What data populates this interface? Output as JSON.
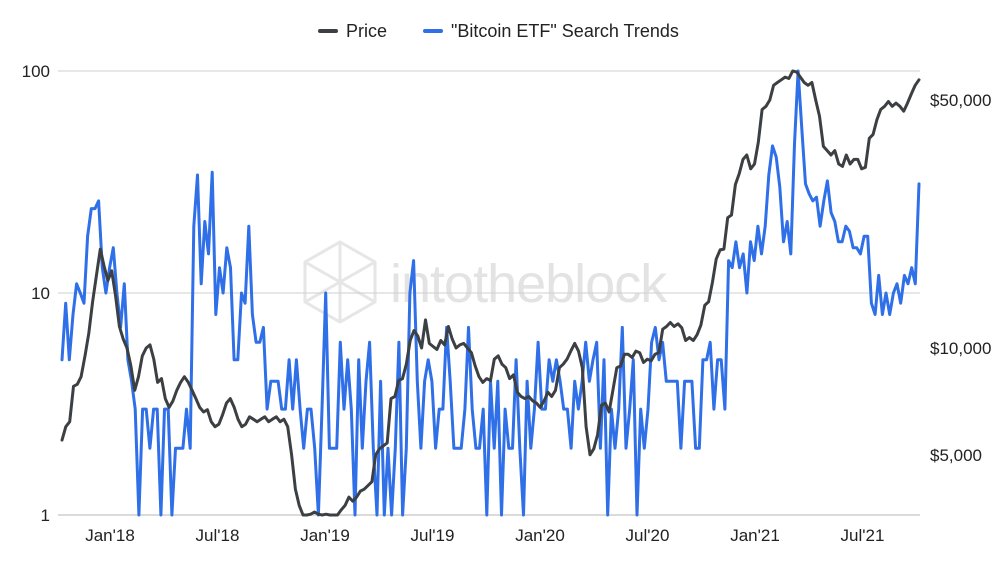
{
  "chart_data": {
    "type": "line",
    "legend_position": "top",
    "watermark": "intotheblock",
    "colors": {
      "price": "#3c4043",
      "search": "#2f6fe8",
      "grid": "#cfcfcf"
    },
    "x_ticks": [
      "Jan'18",
      "Jul'18",
      "Jan'19",
      "Jul'19",
      "Jan'20",
      "Jul'20",
      "Jan'21",
      "Jul'21"
    ],
    "left_axis": {
      "scale": "log",
      "range": [
        1,
        100
      ],
      "ticks": [
        "1",
        "10",
        "100"
      ]
    },
    "right_axis": {
      "scale": "log",
      "ticks": [
        "$5,000",
        "$10,000",
        "$50,000"
      ]
    },
    "series": [
      {
        "name": "Price",
        "axis": "right",
        "values": [
          5500,
          6000,
          6200,
          7800,
          7900,
          8300,
          9500,
          11000,
          13500,
          16000,
          19000,
          17000,
          15500,
          16500,
          14000,
          11500,
          10600,
          10000,
          8900,
          7600,
          8300,
          9500,
          10000,
          10200,
          9300,
          8000,
          8200,
          7200,
          6800,
          7100,
          7600,
          8000,
          8300,
          8000,
          7600,
          7200,
          6800,
          6600,
          6700,
          6200,
          6000,
          6100,
          6500,
          7000,
          7200,
          6800,
          6300,
          6000,
          6100,
          6400,
          6300,
          6200,
          6300,
          6400,
          6200,
          6300,
          6400,
          6200,
          6300,
          6000,
          5000,
          4000,
          3600,
          3300,
          3200,
          3400,
          3450,
          3400,
          3300,
          3400,
          3300,
          3200,
          3300,
          3500,
          3600,
          3800,
          3700,
          3800,
          3950,
          4000,
          4100,
          4200,
          5000,
          5200,
          5300,
          5400,
          7200,
          7300,
          8100,
          8200,
          9000,
          10500,
          11200,
          10800,
          10000,
          12000,
          10300,
          10100,
          9900,
          10500,
          10200,
          11500,
          10600,
          10000,
          10200,
          10300,
          10000,
          9700,
          8900,
          8300,
          8000,
          8200,
          8100,
          9300,
          9500,
          9000,
          8800,
          8200,
          8400,
          7500,
          7300,
          7200,
          7300,
          7100,
          7000,
          6800,
          7100,
          7500,
          7300,
          7600,
          8800,
          9000,
          9300,
          9800,
          10300,
          9800,
          8800,
          6000,
          5000,
          5200,
          5700,
          6900,
          7000,
          6600,
          7600,
          8800,
          8900,
          9600,
          9600,
          9400,
          9800,
          9700,
          9100,
          9300,
          9200,
          9600,
          9700,
          11300,
          11500,
          11800,
          11500,
          11700,
          11400,
          10500,
          10700,
          10500,
          10900,
          11600,
          13200,
          13500,
          15300,
          17800,
          18900,
          19000,
          23300,
          23700,
          28900,
          31000,
          34000,
          35000,
          32000,
          33000,
          38000,
          47000,
          48000,
          50000,
          55000,
          56000,
          57000,
          58000,
          57500,
          61000,
          60000,
          58000,
          56000,
          55000,
          56000,
          50000,
          45000,
          37000,
          36000,
          35000,
          36000,
          33000,
          32500,
          35000,
          33000,
          34000,
          34000,
          32000,
          32300,
          39000,
          40000,
          44000,
          47000,
          48000,
          49500,
          48000,
          49000,
          48000,
          46500,
          49000,
          52000,
          55000,
          57000
        ]
      },
      {
        "name": "\"Bitcoin ETF\" Search Trends",
        "axis": "left",
        "values": [
          5,
          9,
          5,
          8,
          11,
          10,
          9,
          18,
          24,
          24,
          26,
          13,
          10,
          13,
          16,
          10,
          7,
          11,
          5,
          4,
          3,
          1,
          3,
          3,
          2,
          3,
          3,
          1,
          3,
          3,
          1,
          2,
          2,
          2,
          3,
          2,
          20,
          34,
          11,
          21,
          15,
          35,
          8,
          13,
          10,
          16,
          13,
          5,
          5,
          10,
          9,
          20,
          8,
          6,
          6,
          7,
          3,
          4,
          4,
          4,
          3,
          3,
          5,
          3,
          5,
          3,
          2,
          3,
          3,
          2,
          1,
          3,
          10,
          2,
          2,
          2,
          6,
          3,
          5,
          3,
          1,
          5,
          2,
          4,
          6,
          2,
          1,
          4,
          1,
          2,
          1,
          2,
          6,
          1,
          2,
          10,
          14,
          4,
          2,
          4,
          5,
          4,
          2,
          3,
          3,
          7,
          4,
          2,
          2,
          2,
          3,
          7,
          3,
          2,
          2,
          3,
          1,
          4,
          2,
          4,
          1,
          3,
          2,
          2,
          5,
          2,
          1,
          4,
          2,
          3,
          6,
          3,
          3,
          5,
          4,
          5,
          4,
          3,
          3,
          2,
          4,
          3,
          4,
          6,
          4,
          5,
          6,
          2,
          5,
          1,
          3,
          2,
          3,
          7,
          2,
          3,
          5,
          1,
          3,
          2,
          3,
          6,
          7,
          5,
          6,
          4,
          4,
          4,
          4,
          2,
          4,
          4,
          4,
          2,
          2,
          5,
          5,
          6,
          3,
          5,
          5,
          3,
          14,
          13,
          17,
          13,
          15,
          10,
          17,
          14,
          20,
          15,
          20,
          34,
          46,
          41,
          30,
          17,
          21,
          15,
          47,
          107,
          55,
          31,
          28,
          26,
          27,
          20,
          26,
          32,
          23,
          21,
          17,
          17,
          20,
          19,
          16,
          16,
          15,
          18,
          18,
          9,
          8,
          12,
          8,
          10,
          8,
          10,
          11,
          9,
          12,
          11,
          13,
          11,
          31
        ]
      }
    ]
  }
}
